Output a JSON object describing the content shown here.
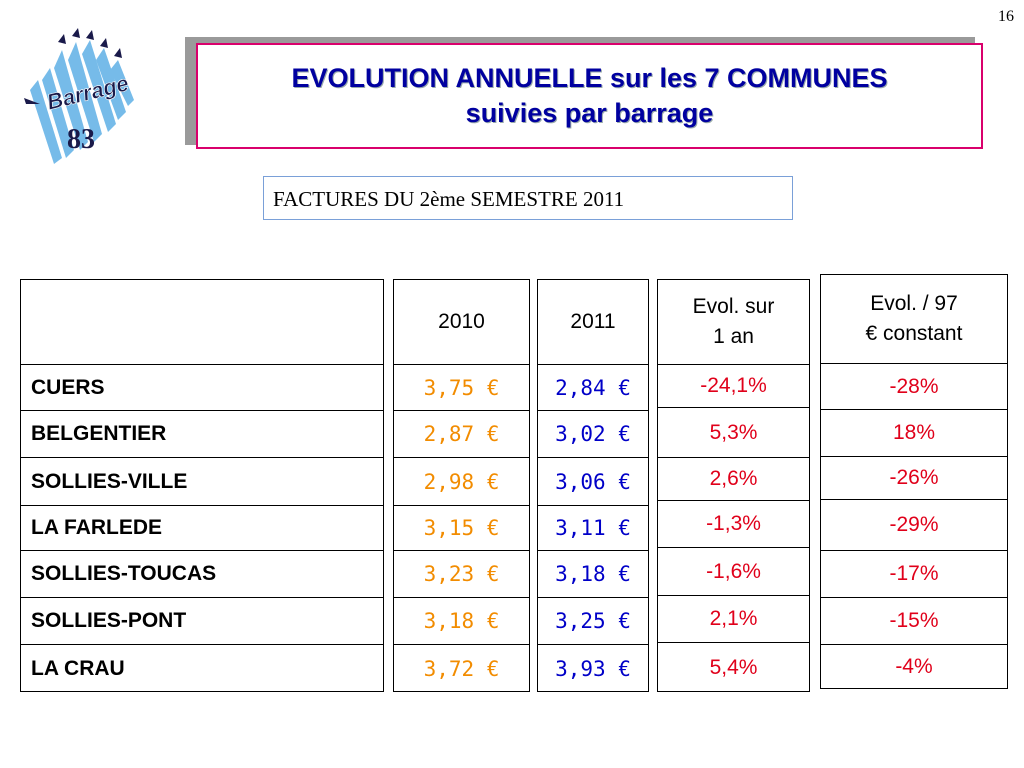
{
  "page_number": "16",
  "logo": {
    "text": "83",
    "word": "Barrage"
  },
  "title": {
    "line1": "EVOLUTION ANNUELLE sur les 7 COMMUNES",
    "line2": "suivies par barrage"
  },
  "subtitle": "FACTURES DU 2ème SEMESTRE 2011",
  "headers": {
    "y2010": "2010",
    "y2011": "2011",
    "evol_1an": [
      "Evol. sur",
      "1 an"
    ],
    "evol_97": [
      "Evol. / 97",
      "€ constant"
    ]
  },
  "communes": [
    "CUERS",
    "BELGENTIER",
    "SOLLIES-VILLE",
    "LA FARLEDE",
    "SOLLIES-TOUCAS",
    "SOLLIES-PONT",
    "LA CRAU"
  ],
  "prices_2010": [
    "3,75 €",
    "2,87 €",
    "2,98 €",
    "3,15 €",
    "3,23 €",
    "3,18 €",
    "3,72 €"
  ],
  "prices_2011": [
    "2,84 €",
    "3,02 €",
    "3,06 €",
    "3,11 €",
    "3,18 €",
    "3,25 €",
    "3,93 €"
  ],
  "evol_1an": [
    "-24,1%",
    "5,3%",
    "2,6%",
    "-1,3%",
    "-1,6%",
    "2,1%",
    "5,4%"
  ],
  "evol_97": [
    "-28%",
    "18%",
    "-26%",
    "-29%",
    "-17%",
    "-15%",
    "-4%"
  ],
  "colors": {
    "title": "#0000a0",
    "title_border": "#d9006c",
    "val_2010": "#f28c00",
    "val_2011": "#0000c8",
    "pct": "#e0001a"
  }
}
